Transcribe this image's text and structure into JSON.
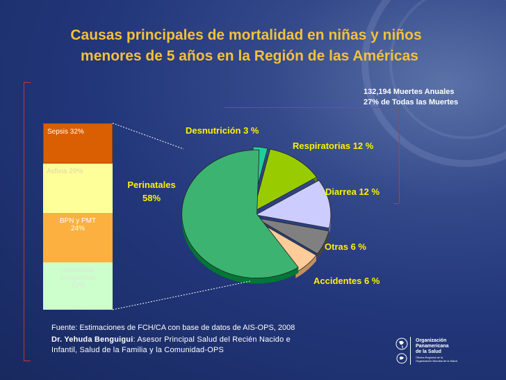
{
  "title_line1": "Causas principales de mortalidad en niñas y niños",
  "title_line2": "menores de 5 años en la Región de las Américas",
  "subtitle_line1": "132,194 Muertes Anuales",
  "subtitle_line2": "27% de Todas las Muertes",
  "colors": {
    "title": "#f2c23a",
    "label": "#fff200",
    "bracket": "#c0392b"
  },
  "chart_data": [
    {
      "type": "pie",
      "slices": [
        {
          "label": "Desnutrición 3 %",
          "value": 3,
          "color": "#1ecf9a"
        },
        {
          "label": "Respiratorias 12 %",
          "value": 12,
          "color": "#99cc00"
        },
        {
          "label": "Diarrea 12 %",
          "value": 12,
          "color": "#ccccff"
        },
        {
          "label": "Otras 6 %",
          "value": 6,
          "color": "#808080"
        },
        {
          "label": "Accidentes 6 %",
          "value": 6,
          "color": "#ffcc99"
        },
        {
          "label": "Perinatales 58%",
          "value": 58,
          "color": "#3cb371"
        }
      ]
    },
    {
      "type": "bar",
      "stacked": true,
      "segments": [
        {
          "label": "Sepsis 32%",
          "value": 32,
          "color": "#d95f02"
        },
        {
          "label": "Asfixia 29%",
          "value": 29,
          "color": "#ffff99"
        },
        {
          "label": "BPN y PMT 24%",
          "value": 24,
          "color": "#fbb040"
        },
        {
          "label": "Anomalías Congénitas 10%",
          "value": 10,
          "color": "#ccffcc"
        }
      ]
    }
  ],
  "pie_labels": {
    "desnutricion": "Desnutrición 3 %",
    "respiratorias": "Respiratorias 12 %",
    "diarrea": "Diarrea 12 %",
    "otras": "Otras 6 %",
    "accidentes": "Accidentes 6 %",
    "perinatales_line1": "Perinatales",
    "perinatales_line2": "58%"
  },
  "stack_labels": {
    "sepsis": "Sepsis 32%",
    "asfixia": "Asfixia 29%",
    "bpn_line1": "BPN y PMT",
    "bpn_line2": "24%",
    "anom_line1": "Anomalías",
    "anom_line2": "Congénitas",
    "anom_line3": "10%"
  },
  "footer": {
    "source": "Fuente: Estimaciones de FCH/CA  con base de datos de AIS-OPS, 2008",
    "author_name": "Dr. Yehuda Benguigui",
    "author_role": ": Asesor Principal Salud del Recién Nacido e",
    "author_role2": "Infantil, Salud de la Familia y la Comunidad-OPS"
  },
  "logo": {
    "name_line1": "Organización",
    "name_line2": "Panamericana",
    "name_line3": "de la Salud",
    "sub_line1": "Oficina Regional de la",
    "sub_line2": "Organización Mundial de la Salud"
  }
}
